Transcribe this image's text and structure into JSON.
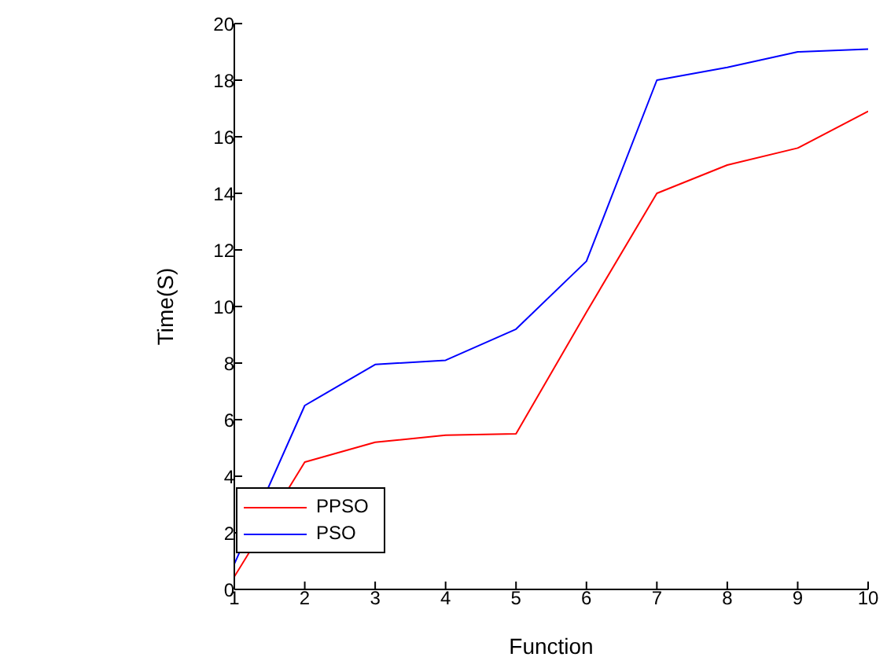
{
  "chart_data": {
    "type": "line",
    "xlabel": "Function",
    "ylabel": "Time(S)",
    "x": [
      1,
      2,
      3,
      4,
      5,
      6,
      7,
      8,
      9,
      10
    ],
    "series": [
      {
        "name": "PPSO",
        "color": "#ff0000",
        "values": [
          0.45,
          4.5,
          5.2,
          5.45,
          5.5,
          9.8,
          14,
          15,
          15.6,
          16.9
        ]
      },
      {
        "name": "PSO",
        "color": "#0000ff",
        "values": [
          0.9,
          6.5,
          7.95,
          8.1,
          9.2,
          11.6,
          18,
          18.45,
          19,
          19.1
        ]
      }
    ],
    "xlim": [
      1,
      10
    ],
    "xticks": [
      1,
      2,
      3,
      4,
      5,
      6,
      7,
      8,
      9,
      10
    ],
    "ylim": [
      0,
      20
    ],
    "yticks": [
      0,
      2,
      4,
      6,
      8,
      10,
      12,
      14,
      16,
      18,
      20
    ],
    "grid": false,
    "legend": "bottom left",
    "marker": "none",
    "line_style": "solid"
  }
}
